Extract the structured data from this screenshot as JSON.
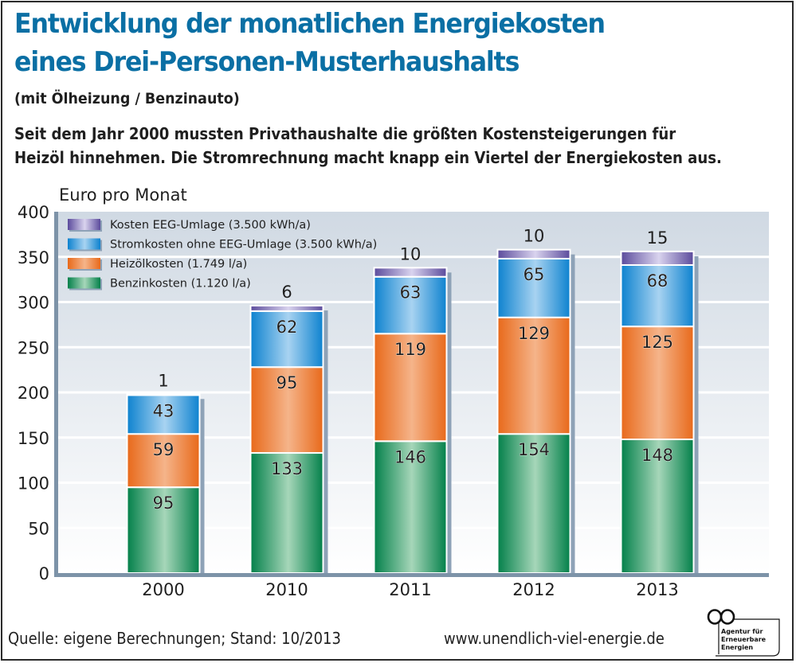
{
  "header": {
    "title_line1": "Entwicklung der monatlichen Energiekosten",
    "title_line2": "eines Drei-Personen-Musterhaushalts",
    "subtitle": "(mit Ölheizung / Benzinauto)",
    "lead_line1": "Seit dem Jahr 2000 mussten Privathaushalte die größten Kostensteigerungen für",
    "lead_line2": "Heizöl hinnehmen. Die Stromrechnung macht knapp ein Viertel der Energiekosten aus."
  },
  "footer": {
    "source": "Quelle: eigene Berechnungen; Stand: 10/2013",
    "url": "www.unendlich-viel-energie.de",
    "logo_icon": "infinity-icon",
    "logo_text": [
      "Agentur für",
      "Erneuerbare",
      "Energien"
    ]
  },
  "colors": {
    "title": "#0a6fa4",
    "eeg": "#6a5aa8",
    "strom": "#1a8ed6",
    "heizoel": "#ec7322",
    "benzin": "#118a55",
    "plot_bg_top": "#d0d9e3",
    "plot_bg_bottom": "#ffffff",
    "axis": "#7d93a8"
  },
  "chart_data": {
    "type": "bar",
    "stacked": true,
    "title": "Entwicklung der monatlichen Energiekosten eines Drei-Personen-Musterhaushalts",
    "ylabel": "Euro pro Monat",
    "xlabel": "",
    "ylim": [
      0,
      400
    ],
    "yticks": [
      0,
      50,
      100,
      150,
      200,
      250,
      300,
      350,
      400
    ],
    "grid": true,
    "legend_position": "top-left",
    "categories": [
      "2000",
      "2010",
      "2011",
      "2012",
      "2013"
    ],
    "series": [
      {
        "key": "benzin",
        "name": "Benzinkosten (1.120 l/a)",
        "values": [
          95,
          133,
          146,
          154,
          148
        ]
      },
      {
        "key": "heizoel",
        "name": "Heizölkosten (1.749 l/a)",
        "values": [
          59,
          95,
          119,
          129,
          125
        ]
      },
      {
        "key": "strom",
        "name": "Stromkosten ohne EEG-Umlage (3.500 kWh/a)",
        "values": [
          43,
          62,
          63,
          65,
          68
        ]
      },
      {
        "key": "eeg",
        "name": "Kosten EEG-Umlage (3.500 kWh/a)",
        "values": [
          1,
          6,
          10,
          10,
          15
        ]
      }
    ],
    "legend_order": [
      "eeg",
      "strom",
      "heizoel",
      "benzin"
    ]
  }
}
